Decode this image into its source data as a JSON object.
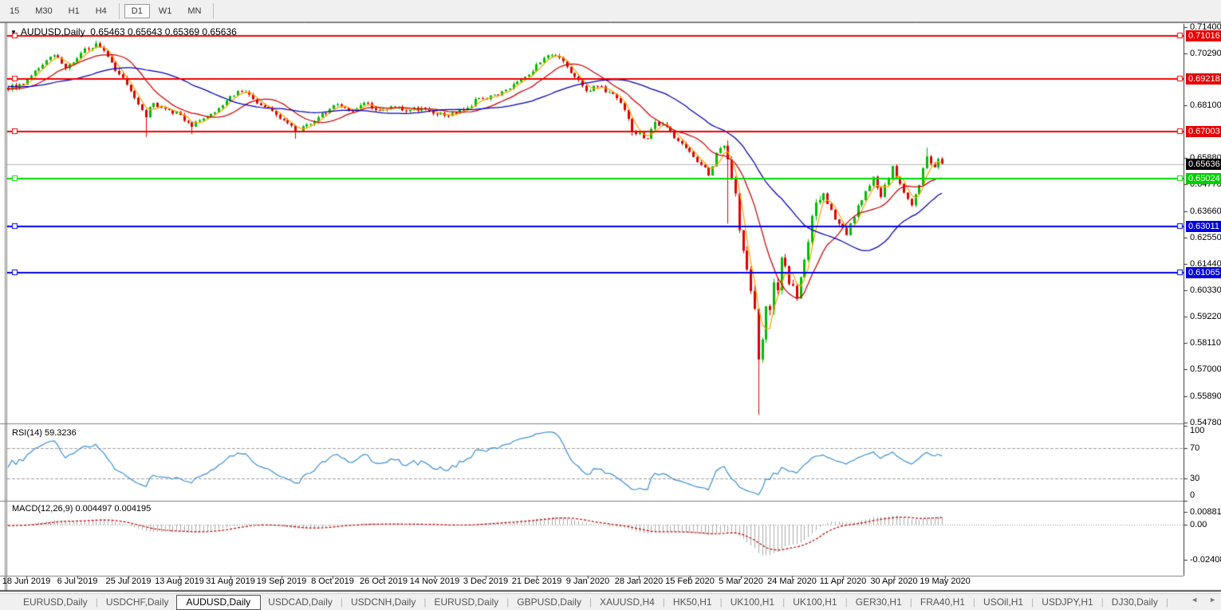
{
  "toolbar": {
    "timeframes": [
      {
        "label": "15",
        "active": false
      },
      {
        "label": "M30",
        "active": false
      },
      {
        "label": "H1",
        "active": false
      },
      {
        "label": "H4",
        "active": false
      },
      {
        "label": "D1",
        "active": true,
        "divider_before": true
      },
      {
        "label": "W1",
        "active": false
      },
      {
        "label": "MN",
        "active": false,
        "divider_after": true
      }
    ]
  },
  "chart": {
    "title_symbol": "AUDUSD,Daily",
    "title_ohlc": "0.65463 0.65643 0.65369 0.65636",
    "dropdown_icon": "▼"
  },
  "price_axis": {
    "ticks": [
      {
        "label": "0.71400",
        "value": 0.714
      },
      {
        "label": "0.70290",
        "value": 0.7029
      },
      {
        "label": "0.68100",
        "value": 0.681
      },
      {
        "label": "0.65880",
        "value": 0.6588
      },
      {
        "label": "0.64770",
        "value": 0.6477
      },
      {
        "label": "0.63660",
        "value": 0.6366
      },
      {
        "label": "0.62550",
        "value": 0.6255
      },
      {
        "label": "0.61440",
        "value": 0.6144
      },
      {
        "label": "0.60330",
        "value": 0.6033
      },
      {
        "label": "0.59220",
        "value": 0.5922
      },
      {
        "label": "0.58110",
        "value": 0.5811
      },
      {
        "label": "0.57000",
        "value": 0.57
      },
      {
        "label": "0.55890",
        "value": 0.5589
      },
      {
        "label": "0.54780",
        "value": 0.5478
      }
    ],
    "badges": [
      {
        "label": "0.71016",
        "value": 0.71016,
        "bg": "#e80000",
        "fg": "#ffffff",
        "kind": "resistance"
      },
      {
        "label": "0.69218",
        "value": 0.69218,
        "bg": "#e80000",
        "fg": "#ffffff",
        "kind": "resistance"
      },
      {
        "label": "0.67003",
        "value": 0.67003,
        "bg": "#e80000",
        "fg": "#ffffff",
        "kind": "resistance"
      },
      {
        "label": "0.65636",
        "value": 0.65636,
        "bg": "#000000",
        "fg": "#ffffff",
        "kind": "current-price"
      },
      {
        "label": "0.65024",
        "value": 0.65024,
        "bg": "#00d000",
        "fg": "#ffffff",
        "kind": "support"
      },
      {
        "label": "0.63011",
        "value": 0.63011,
        "bg": "#0000e0",
        "fg": "#ffffff",
        "kind": "support"
      },
      {
        "label": "0.61065",
        "value": 0.61065,
        "bg": "#0000e0",
        "fg": "#ffffff",
        "kind": "support"
      }
    ]
  },
  "date_axis": {
    "labels": [
      "18 Jun 2019",
      "6 Jul 2019",
      "25 Jul 2019",
      "13 Aug 2019",
      "31 Aug 2019",
      "19 Sep 2019",
      "8 Oct 2019",
      "26 Oct 2019",
      "14 Nov 2019",
      "3 Dec 2019",
      "21 Dec 2019",
      "9 Jan 2020",
      "28 Jan 2020",
      "15 Feb 2020",
      "5 Mar 2020",
      "24 Mar 2020",
      "11 Apr 2020",
      "30 Apr 2020",
      "19 May 2020"
    ]
  },
  "rsi_panel": {
    "label": "RSI(14) 59.3236",
    "axis": [
      {
        "label": "100",
        "value": 100
      },
      {
        "label": "70",
        "value": 70
      },
      {
        "label": "30",
        "value": 30
      },
      {
        "label": "0",
        "value": 0
      }
    ],
    "levels": [
      70,
      30
    ]
  },
  "macd_panel": {
    "label": "MACD(12,26,9) 0.004497 0.004195",
    "axis": [
      {
        "label": "0.008815",
        "value": 0.008815
      },
      {
        "label": "0.00",
        "value": 0
      },
      {
        "label": "-0.024082",
        "value": -0.024082
      }
    ]
  },
  "tabs": {
    "items": [
      {
        "label": "EURUSD,Daily",
        "active": false
      },
      {
        "label": "USDCHF,Daily",
        "active": false
      },
      {
        "label": "AUDUSD,Daily",
        "active": true
      },
      {
        "label": "USDCAD,Daily",
        "active": false
      },
      {
        "label": "USDCNH,Daily",
        "active": false
      },
      {
        "label": "EURUSD,Daily",
        "active": false
      },
      {
        "label": "GBPUSD,Daily",
        "active": false
      },
      {
        "label": "XAUUSD,H4",
        "active": false
      },
      {
        "label": "HK50,H1",
        "active": false
      },
      {
        "label": "UK100,H1",
        "active": false
      },
      {
        "label": "UK100,H1",
        "active": false
      },
      {
        "label": "GER30,H1",
        "active": false
      },
      {
        "label": "FRA40,H1",
        "active": false
      },
      {
        "label": "USOil,H1",
        "active": false
      },
      {
        "label": "USDJPY,H1",
        "active": false
      },
      {
        "label": "DJ30,Daily",
        "active": false
      }
    ],
    "nav_prev": "◄",
    "nav_next": "►"
  },
  "colors": {
    "candle_up": "#00bb00",
    "candle_down": "#dd0000",
    "ma_fast": "#ffa500",
    "ma_mid": "#cc0000",
    "ma_slow": "#0000bb",
    "hline_red": "#f00000",
    "hline_green": "#00dd00",
    "hline_blue": "#0000ee",
    "current_price_line": "#b8b8b8",
    "rsi_line": "#3a8fd6",
    "macd_hist": "#ababab",
    "macd_signal": "#c00000",
    "panel_border": "#808080"
  },
  "chart_data": {
    "type": "candlestick+indicators",
    "symbol": "AUDUSD",
    "timeframe": "Daily",
    "ohlc_display": {
      "open": 0.65463,
      "high": 0.65643,
      "low": 0.65369,
      "close": 0.65636
    },
    "current_price": 0.65636,
    "num_candles": 245,
    "x_labels": [
      "18 Jun 2019",
      "6 Jul 2019",
      "25 Jul 2019",
      "13 Aug 2019",
      "31 Aug 2019",
      "19 Sep 2019",
      "8 Oct 2019",
      "26 Oct 2019",
      "14 Nov 2019",
      "3 Dec 2019",
      "21 Dec 2019",
      "9 Jan 2020",
      "28 Jan 2020",
      "15 Feb 2020",
      "5 Mar 2020",
      "24 Mar 2020",
      "11 Apr 2020",
      "30 Apr 2020",
      "19 May 2020"
    ],
    "y_ticks": [
      0.714,
      0.7029,
      0.681,
      0.6588,
      0.6477,
      0.6366,
      0.6255,
      0.6144,
      0.6033,
      0.5922,
      0.5811,
      0.57,
      0.5589,
      0.5478
    ],
    "y_range": [
      0.5478,
      0.714
    ],
    "horizontal_levels": [
      {
        "price": 0.71016,
        "color": "#f00000",
        "role": "resistance"
      },
      {
        "price": 0.69218,
        "color": "#f00000",
        "role": "resistance"
      },
      {
        "price": 0.67003,
        "color": "#f00000",
        "role": "resistance"
      },
      {
        "price": 0.65636,
        "color": "#b8b8b8",
        "role": "current-price"
      },
      {
        "price": 0.65024,
        "color": "#00dd00",
        "role": "support"
      },
      {
        "price": 0.63011,
        "color": "#0000ee",
        "role": "support"
      },
      {
        "price": 0.61065,
        "color": "#0000ee",
        "role": "support"
      }
    ],
    "price_anchors": [
      [
        0,
        0.6875
      ],
      [
        3,
        0.69
      ],
      [
        5,
        0.692
      ],
      [
        8,
        0.6965
      ],
      [
        10,
        0.7
      ],
      [
        12,
        0.702
      ],
      [
        14,
        0.6985
      ],
      [
        15,
        0.6965
      ],
      [
        17,
        0.699
      ],
      [
        19,
        0.703
      ],
      [
        21,
        0.7045
      ],
      [
        23,
        0.707
      ],
      [
        25,
        0.704
      ],
      [
        27,
        0.699
      ],
      [
        29,
        0.694
      ],
      [
        32,
        0.687
      ],
      [
        35,
        0.679
      ],
      [
        36,
        0.676
      ],
      [
        38,
        0.682
      ],
      [
        40,
        0.68
      ],
      [
        42,
        0.679
      ],
      [
        45,
        0.677
      ],
      [
        48,
        0.672
      ],
      [
        51,
        0.6755
      ],
      [
        54,
        0.678
      ],
      [
        57,
        0.683
      ],
      [
        60,
        0.687
      ],
      [
        63,
        0.6855
      ],
      [
        66,
        0.681
      ],
      [
        70,
        0.677
      ],
      [
        73,
        0.6735
      ],
      [
        75,
        0.67
      ],
      [
        78,
        0.673
      ],
      [
        81,
        0.676
      ],
      [
        85,
        0.681
      ],
      [
        88,
        0.68
      ],
      [
        90,
        0.6785
      ],
      [
        93,
        0.682
      ],
      [
        96,
        0.679
      ],
      [
        100,
        0.6805
      ],
      [
        104,
        0.6785
      ],
      [
        108,
        0.68
      ],
      [
        111,
        0.6775
      ],
      [
        115,
        0.6765
      ],
      [
        119,
        0.679
      ],
      [
        123,
        0.684
      ],
      [
        127,
        0.6855
      ],
      [
        131,
        0.688
      ],
      [
        135,
        0.693
      ],
      [
        139,
        0.699
      ],
      [
        142,
        0.702
      ],
      [
        145,
        0.6995
      ],
      [
        148,
        0.693
      ],
      [
        151,
        0.687
      ],
      [
        154,
        0.689
      ],
      [
        157,
        0.6865
      ],
      [
        159,
        0.684
      ],
      [
        161,
        0.679
      ],
      [
        163,
        0.67
      ],
      [
        165,
        0.6695
      ],
      [
        167,
        0.667
      ],
      [
        169,
        0.674
      ],
      [
        172,
        0.672
      ],
      [
        175,
        0.666
      ],
      [
        178,
        0.6615
      ],
      [
        181,
        0.656
      ],
      [
        183,
        0.6515
      ],
      [
        185,
        0.661
      ],
      [
        187,
        0.664
      ],
      [
        188,
        0.6583
      ],
      [
        190,
        0.644
      ],
      [
        191,
        0.6285
      ],
      [
        193,
        0.612
      ],
      [
        194,
        0.603
      ],
      [
        195,
        0.5955
      ],
      [
        196,
        0.5742
      ],
      [
        197,
        0.5826
      ],
      [
        198,
        0.5966
      ],
      [
        199,
        0.595
      ],
      [
        200,
        0.6066
      ],
      [
        201,
        0.6033
      ],
      [
        202,
        0.617
      ],
      [
        203,
        0.6135
      ],
      [
        204,
        0.6059
      ],
      [
        206,
        0.5999
      ],
      [
        207,
        0.6087
      ],
      [
        208,
        0.6161
      ],
      [
        209,
        0.6235
      ],
      [
        210,
        0.6345
      ],
      [
        213,
        0.644
      ],
      [
        216,
        0.633
      ],
      [
        219,
        0.6265
      ],
      [
        222,
        0.639
      ],
      [
        226,
        0.651
      ],
      [
        228,
        0.6425
      ],
      [
        231,
        0.6555
      ],
      [
        233,
        0.648
      ],
      [
        236,
        0.639
      ],
      [
        238,
        0.6475
      ],
      [
        240,
        0.6595
      ],
      [
        241,
        0.6565
      ],
      [
        242,
        0.655
      ],
      [
        243,
        0.6585
      ],
      [
        244,
        0.65636
      ]
    ],
    "wick_overrides": {
      "23": {
        "high": 0.7082
      },
      "36": {
        "low": 0.6677
      },
      "48": {
        "low": 0.6689
      },
      "75": {
        "low": 0.667
      },
      "163": {
        "low": 0.6682
      },
      "188": {
        "high": 0.6662,
        "low": 0.6313
      },
      "196": {
        "low": 0.551
      },
      "240": {
        "high": 0.6632
      }
    },
    "moving_averages": [
      {
        "period": 4,
        "color": "#ffa500"
      },
      {
        "period": 13,
        "color": "#cc0000"
      },
      {
        "period": 35,
        "color": "#0000bb"
      }
    ],
    "indicators": {
      "rsi": {
        "label": "RSI(14)",
        "display_value": 59.3236,
        "period": 14,
        "levels": [
          70,
          30
        ],
        "range": [
          0,
          100
        ]
      },
      "macd": {
        "label": "MACD(12,26,9)",
        "fast": 12,
        "slow": 26,
        "signal": 9,
        "display_values": [
          0.004497,
          0.004195
        ],
        "axis_max": 0.008815,
        "axis_min": -0.024082
      }
    }
  }
}
